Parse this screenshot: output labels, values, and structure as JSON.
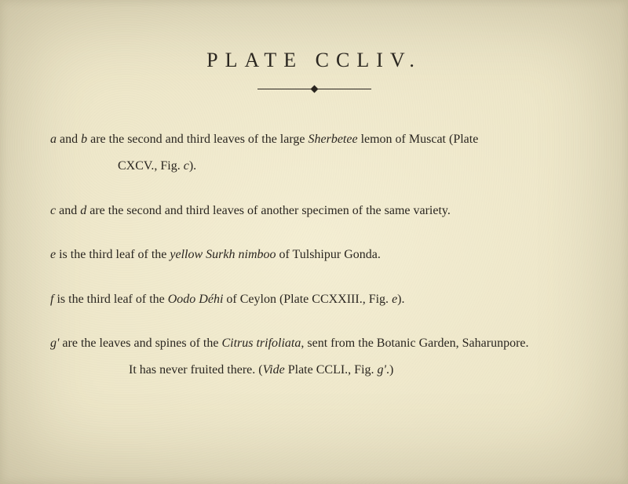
{
  "title": "PLATE CCLIV.",
  "entries": {
    "ab": {
      "line1_pre": "a ",
      "line1_mid": "and ",
      "line1_b": "b ",
      "line1_post": "are the second and third leaves of the large ",
      "line1_ital": "Sherbetee",
      "line1_end": " lemon of Muscat (Plate",
      "line2_pre": "CXCV., Fig. ",
      "line2_ital": "c",
      "line2_end": ")."
    },
    "cd": {
      "pre": "c ",
      "mid": "and ",
      "d": "d ",
      "post": "are the second and third leaves of another specimen of the same variety."
    },
    "e": {
      "pre": "e ",
      "post1": "is the third leaf of the ",
      "ital": "yellow Surkh nimboo",
      "post2": " of Tulshipur Gonda."
    },
    "f": {
      "pre": "f ",
      "post1": "is the third leaf of the ",
      "ital": "Oodo Déhi",
      "post2": " of Ceylon (Plate CCXXIII., Fig. ",
      "ital2": "e",
      "post3": ")."
    },
    "g": {
      "pre": "g' ",
      "post1": "are the leaves and spines of the ",
      "ital": "Citrus trifoliata",
      "post2": ", sent from the Botanic Garden, Saharunpore.",
      "line2_pre": "It has never fruited there.   (",
      "line2_ital1": "Vide",
      "line2_mid": " Plate CCLI., Fig. ",
      "line2_ital2": "g'",
      "line2_end": ".)"
    }
  },
  "colors": {
    "background": "#f3edd1",
    "text": "#2a2620"
  },
  "typography": {
    "title_fontsize": 26,
    "title_letterspacing": 9,
    "body_fontsize": 16,
    "body_lineheight": 1.9,
    "font_family": "Georgia, Times New Roman, serif"
  }
}
